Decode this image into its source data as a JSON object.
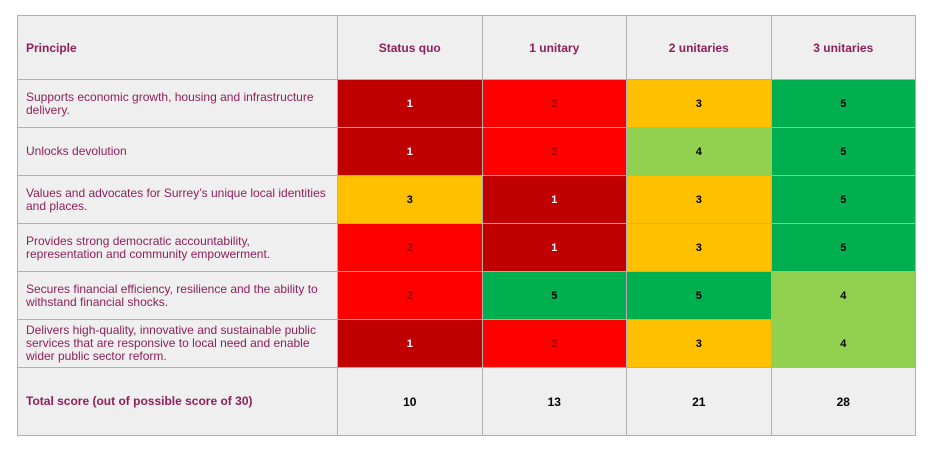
{
  "table": {
    "header": [
      "Principle",
      "Status quo",
      "1 unitary",
      "2 unitaries",
      "3 unitaries"
    ],
    "rows": [
      {
        "principle": "Supports economic growth, housing and infrastructure delivery.",
        "scores": [
          1,
          2,
          3,
          5
        ]
      },
      {
        "principle": "Unlocks devolution",
        "scores": [
          1,
          2,
          4,
          5
        ]
      },
      {
        "principle": "Values and advocates for Surrey’s unique local identities and places.",
        "scores": [
          3,
          1,
          3,
          5
        ]
      },
      {
        "principle": "Provides strong democratic accountability, representation and community empowerment.",
        "scores": [
          2,
          1,
          3,
          5
        ]
      },
      {
        "principle": "Secures financial efficiency, resilience and the ability to withstand financial shocks.",
        "scores": [
          2,
          5,
          5,
          4
        ]
      },
      {
        "principle": "Delivers high-quality, innovative and sustainable public services that are responsive to local need and enable wider public sector reform.",
        "scores": [
          1,
          2,
          3,
          4
        ]
      }
    ],
    "total": {
      "label": "Total score (out of possible score of 30)",
      "scores": [
        10,
        13,
        21,
        28
      ]
    },
    "score_colors": {
      "1": "#c00000",
      "2": "#ff0000",
      "3": "#ffc000",
      "4": "#92d050",
      "5": "#00b050"
    },
    "score_text_colors": {
      "1": "#ffffff",
      "2": "#a00000",
      "3": "#000000",
      "4": "#000000",
      "5": "#000000"
    }
  }
}
